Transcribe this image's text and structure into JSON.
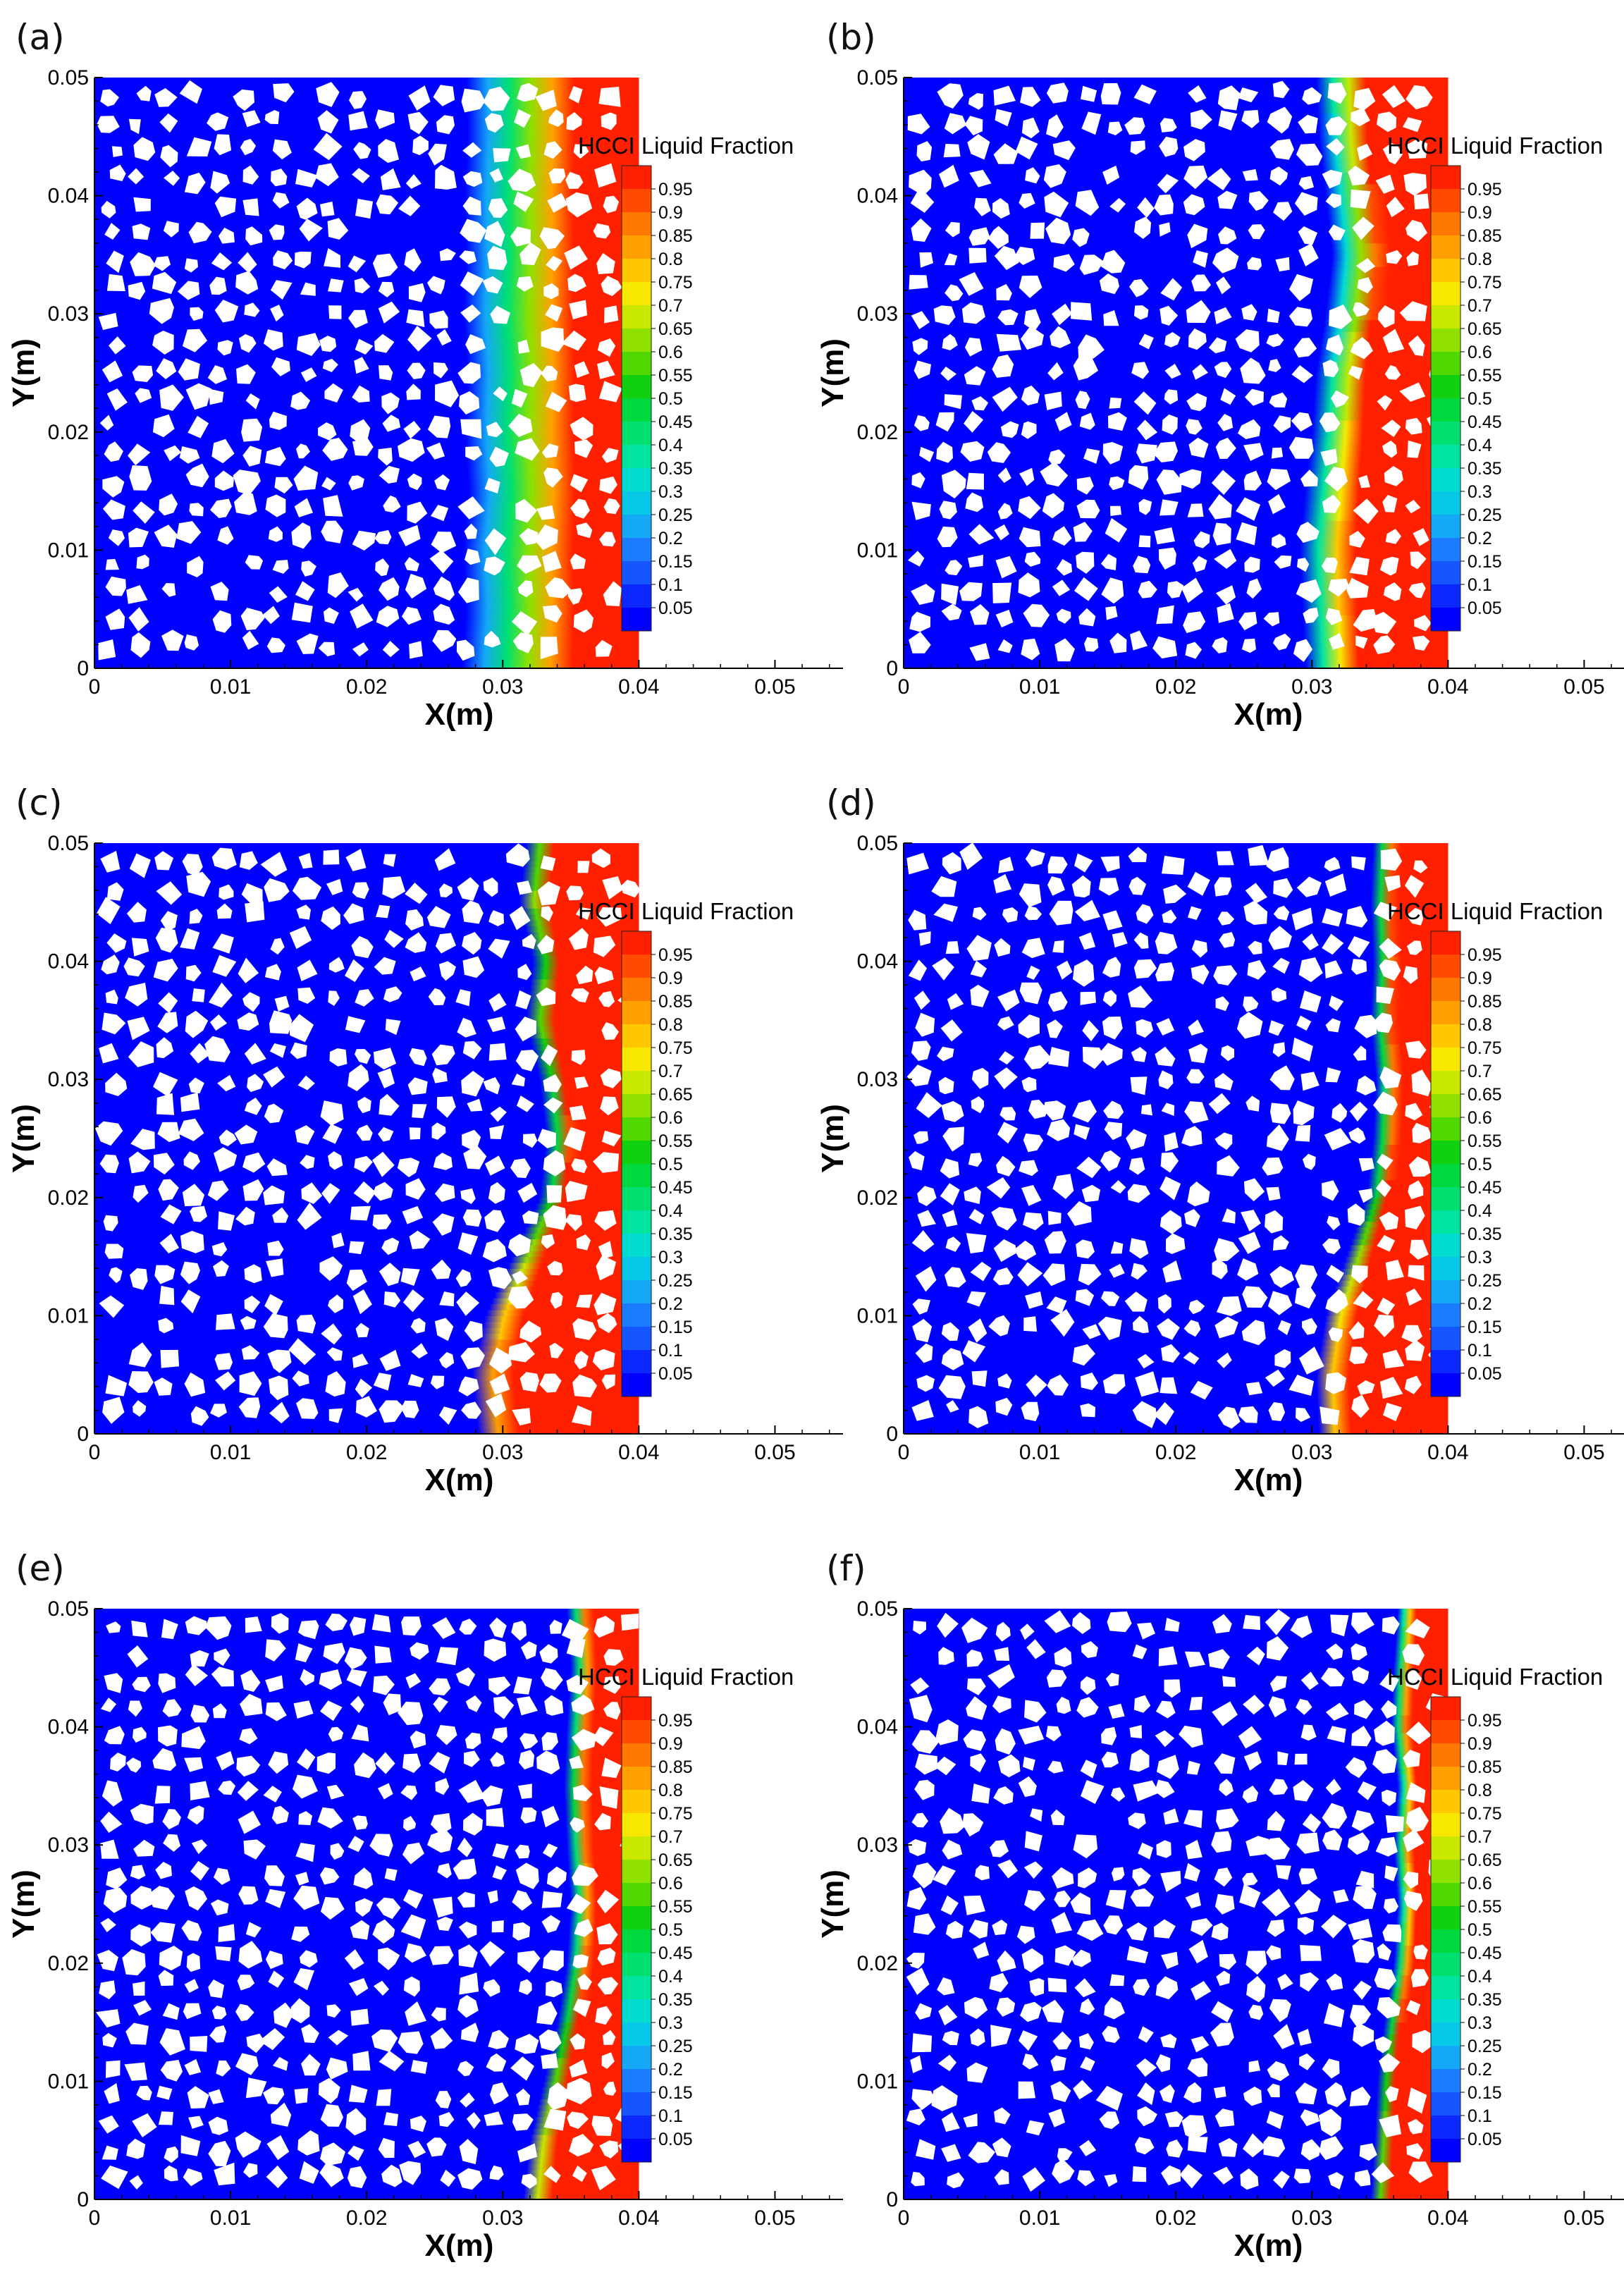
{
  "figure": {
    "colormap": [
      "#0000ff",
      "#0a28ff",
      "#1656ff",
      "#1c7cff",
      "#14a8f6",
      "#08c8e8",
      "#00dcd0",
      "#00e4a0",
      "#00e070",
      "#00d840",
      "#10d010",
      "#50d800",
      "#90e000",
      "#c8e800",
      "#f8e800",
      "#ffc800",
      "#ffa000",
      "#ff7800",
      "#ff4a00",
      "#ff2000"
    ],
    "particle_color": "#ffffff"
  },
  "chart_data": [
    {
      "panel": "(a)",
      "type": "heatmap",
      "xlabel": "X(m)",
      "ylabel": "Y(m)",
      "xlim": [
        0,
        0.055
      ],
      "ylim": [
        0,
        0.05
      ],
      "x_ticks": [
        "0",
        "0.01",
        "0.02",
        "0.03",
        "0.04",
        "0.05"
      ],
      "y_ticks": [
        "0",
        "0.01",
        "0.02",
        "0.03",
        "0.04",
        "0.05"
      ],
      "domain_x": [
        0,
        0.04
      ],
      "domain_y": [
        0,
        0.05
      ],
      "front_profile": {
        "y": [
          0,
          0.005,
          0.01,
          0.015,
          0.02,
          0.025,
          0.03,
          0.035,
          0.04,
          0.045,
          0.05
        ],
        "x": [
          0.0345,
          0.0348,
          0.0346,
          0.035,
          0.0347,
          0.0349,
          0.0346,
          0.0348,
          0.0347,
          0.0349,
          0.0348
        ]
      },
      "front_width": 0.0075,
      "front_base": 0.05,
      "legend": {
        "title": "HCCI Liquid Fraction",
        "levels": [
          "0.95",
          "0.9",
          "0.85",
          "0.8",
          "0.75",
          "0.7",
          "0.65",
          "0.6",
          "0.55",
          "0.5",
          "0.45",
          "0.4",
          "0.35",
          "0.3",
          "0.25",
          "0.2",
          "0.15",
          "0.1",
          "0.05"
        ]
      }
    },
    {
      "panel": "(b)",
      "type": "heatmap",
      "xlabel": "X(m)",
      "ylabel": "Y(m)",
      "xlim": [
        0,
        0.055
      ],
      "ylim": [
        0,
        0.05
      ],
      "x_ticks": [
        "0",
        "0.01",
        "0.02",
        "0.03",
        "0.04",
        "0.05"
      ],
      "y_ticks": [
        "0",
        "0.01",
        "0.02",
        "0.03",
        "0.04",
        "0.05"
      ],
      "domain_x": [
        0,
        0.04
      ],
      "domain_y": [
        0,
        0.05
      ],
      "front_profile": {
        "y": [
          0,
          0.005,
          0.01,
          0.015,
          0.02,
          0.025,
          0.03,
          0.035,
          0.04,
          0.045,
          0.05
        ],
        "x": [
          0.033,
          0.0328,
          0.0326,
          0.033,
          0.0335,
          0.0338,
          0.0345,
          0.035,
          0.0345,
          0.034,
          0.0338
        ]
      },
      "front_width": 0.0035,
      "front_base": 0.05,
      "legend": {
        "title": "HCCI Liquid Fraction",
        "levels": [
          "0.95",
          "0.9",
          "0.85",
          "0.8",
          "0.75",
          "0.7",
          "0.65",
          "0.6",
          "0.55",
          "0.5",
          "0.45",
          "0.4",
          "0.35",
          "0.3",
          "0.25",
          "0.2",
          "0.15",
          "0.1",
          "0.05"
        ]
      }
    },
    {
      "panel": "(c)",
      "type": "heatmap",
      "xlabel": "X(m)",
      "ylabel": "Y(m)",
      "xlim": [
        0,
        0.055
      ],
      "ylim": [
        0,
        0.05
      ],
      "x_ticks": [
        "0",
        "0.01",
        "0.02",
        "0.03",
        "0.04",
        "0.05"
      ],
      "y_ticks": [
        "0",
        "0.01",
        "0.02",
        "0.03",
        "0.04",
        "0.05"
      ],
      "domain_x": [
        0,
        0.04
      ],
      "domain_y": [
        0,
        0.05
      ],
      "front_profile": {
        "y": [
          0,
          0.005,
          0.01,
          0.015,
          0.02,
          0.025,
          0.03,
          0.035,
          0.04,
          0.045,
          0.05
        ],
        "x": [
          0.03,
          0.0295,
          0.0305,
          0.0325,
          0.0345,
          0.035,
          0.0345,
          0.0335,
          0.034,
          0.033,
          0.0335
        ]
      },
      "front_width": 0.0018,
      "front_base": 0.05,
      "legend": {
        "title": "HCCI Liquid Fraction",
        "levels": [
          "0.95",
          "0.9",
          "0.85",
          "0.8",
          "0.75",
          "0.7",
          "0.65",
          "0.6",
          "0.55",
          "0.5",
          "0.45",
          "0.4",
          "0.35",
          "0.3",
          "0.25",
          "0.2",
          "0.15",
          "0.1",
          "0.05"
        ]
      }
    },
    {
      "panel": "(d)",
      "type": "heatmap",
      "xlabel": "X(m)",
      "ylabel": "Y(m)",
      "xlim": [
        0,
        0.055
      ],
      "ylim": [
        0,
        0.05
      ],
      "x_ticks": [
        "0",
        "0.01",
        "0.02",
        "0.03",
        "0.04",
        "0.05"
      ],
      "y_ticks": [
        "0",
        "0.01",
        "0.02",
        "0.03",
        "0.04",
        "0.05"
      ],
      "domain_x": [
        0,
        0.04
      ],
      "domain_y": [
        0,
        0.05
      ],
      "front_profile": {
        "y": [
          0,
          0.005,
          0.01,
          0.015,
          0.02,
          0.025,
          0.03,
          0.035,
          0.04,
          0.045,
          0.05
        ],
        "x": [
          0.032,
          0.0318,
          0.0325,
          0.034,
          0.0355,
          0.036,
          0.0362,
          0.0358,
          0.036,
          0.0358,
          0.036
        ]
      },
      "front_width": 0.0015,
      "front_base": 0.05,
      "legend": {
        "title": "HCCI Liquid Fraction",
        "levels": [
          "0.95",
          "0.9",
          "0.85",
          "0.8",
          "0.75",
          "0.7",
          "0.65",
          "0.6",
          "0.55",
          "0.5",
          "0.45",
          "0.4",
          "0.35",
          "0.3",
          "0.25",
          "0.2",
          "0.15",
          "0.1",
          "0.05"
        ]
      }
    },
    {
      "panel": "(e)",
      "type": "heatmap",
      "xlabel": "X(m)",
      "ylabel": "Y(m)",
      "xlim": [
        0,
        0.055
      ],
      "ylim": [
        0,
        0.05
      ],
      "x_ticks": [
        "0",
        "0.01",
        "0.02",
        "0.03",
        "0.04",
        "0.05"
      ],
      "y_ticks": [
        "0",
        "0.01",
        "0.02",
        "0.03",
        "0.04",
        "0.05"
      ],
      "domain_x": [
        0,
        0.04
      ],
      "domain_y": [
        0,
        0.05
      ],
      "front_profile": {
        "y": [
          0,
          0.005,
          0.01,
          0.015,
          0.02,
          0.025,
          0.03,
          0.035,
          0.04,
          0.045,
          0.05
        ],
        "x": [
          0.033,
          0.0335,
          0.0345,
          0.0355,
          0.0362,
          0.0365,
          0.0362,
          0.036,
          0.0362,
          0.0365,
          0.0362
        ]
      },
      "front_width": 0.0015,
      "front_base": 0.05,
      "legend": {
        "title": "HCCI Liquid Fraction",
        "levels": [
          "0.95",
          "0.9",
          "0.85",
          "0.8",
          "0.75",
          "0.7",
          "0.65",
          "0.6",
          "0.55",
          "0.5",
          "0.45",
          "0.4",
          "0.35",
          "0.3",
          "0.25",
          "0.2",
          "0.15",
          "0.1",
          "0.05"
        ]
      }
    },
    {
      "panel": "(f)",
      "type": "heatmap",
      "xlabel": "X(m)",
      "ylabel": "Y(m)",
      "xlim": [
        0,
        0.055
      ],
      "ylim": [
        0,
        0.05
      ],
      "x_ticks": [
        "0",
        "0.01",
        "0.02",
        "0.03",
        "0.04",
        "0.05"
      ],
      "y_ticks": [
        "0",
        "0.01",
        "0.02",
        "0.03",
        "0.04",
        "0.05"
      ],
      "domain_x": [
        0,
        0.04
      ],
      "domain_y": [
        0,
        0.05
      ],
      "front_profile": {
        "y": [
          0,
          0.005,
          0.01,
          0.015,
          0.02,
          0.025,
          0.03,
          0.035,
          0.04,
          0.045,
          0.05
        ],
        "x": [
          0.0355,
          0.0358,
          0.036,
          0.0365,
          0.0372,
          0.0375,
          0.0372,
          0.0375,
          0.037,
          0.0372,
          0.0375
        ]
      },
      "front_width": 0.0012,
      "front_base": 0.05,
      "legend": {
        "title": "HCCI Liquid Fraction",
        "levels": [
          "0.95",
          "0.9",
          "0.85",
          "0.8",
          "0.75",
          "0.7",
          "0.65",
          "0.6",
          "0.55",
          "0.5",
          "0.45",
          "0.4",
          "0.35",
          "0.3",
          "0.25",
          "0.2",
          "0.15",
          "0.1",
          "0.05"
        ]
      }
    }
  ]
}
